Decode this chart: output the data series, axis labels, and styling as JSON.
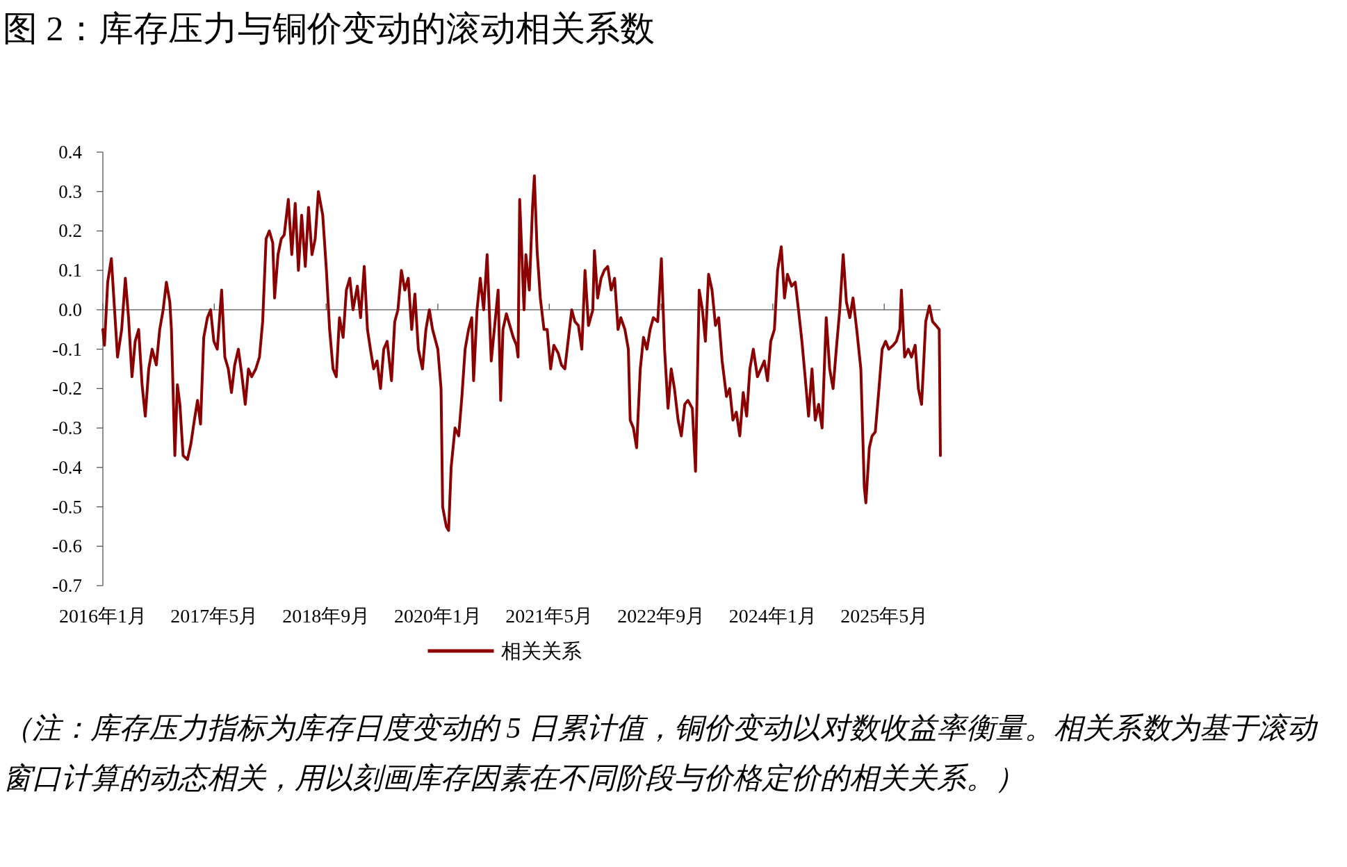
{
  "chart_data": {
    "type": "line",
    "title": "图 2：库存压力与铜价变动的滚动相关系数",
    "annotations": [
      "（注：库存压力指标为库存日度变动的 5 日累计值，铜价变动以对数收益率衡量。相关系数为基于滚动窗口计算的动态相关，用以刻画库存因素在不同阶段与价格定价的相关关系。）"
    ],
    "xlim": [
      "2016-01-01",
      "2026-01-01"
    ],
    "xticks": [
      {
        "value": "2016-01",
        "label": "2016年1月"
      },
      {
        "value": "2017-05",
        "label": "2017年5月"
      },
      {
        "value": "2018-09",
        "label": "2018年9月"
      },
      {
        "value": "2020-01",
        "label": "2020年1月"
      },
      {
        "value": "2021-05",
        "label": "2021年5月"
      },
      {
        "value": "2022-09",
        "label": "2022年9月"
      },
      {
        "value": "2024-01",
        "label": "2024年1月"
      },
      {
        "value": "2025-05",
        "label": "2025年5月"
      }
    ],
    "ylim": [
      -0.7,
      0.4
    ],
    "yticks": [
      -0.7,
      -0.6,
      -0.5,
      -0.4,
      -0.3,
      -0.2,
      -0.1,
      {
        "value": 0,
        "label": "0.0"
      },
      0.1,
      0.2,
      0.3,
      0.4
    ],
    "legend": "bottom",
    "marker": "none",
    "line_style": "solid",
    "series": [
      {
        "name": "相关关系",
        "color": "#8b0000",
        "x": [
          "2016-01-01",
          "2016-01-08",
          "2016-01-22",
          "2016-02-07",
          "2016-02-21",
          "2016-03-05",
          "2016-03-23",
          "2016-04-08",
          "2016-04-22",
          "2016-05-07",
          "2016-05-21",
          "2016-06-05",
          "2016-06-20",
          "2016-07-04",
          "2016-07-19",
          "2016-08-03",
          "2016-08-21",
          "2016-09-05",
          "2016-09-20",
          "2016-10-04",
          "2016-10-19",
          "2016-10-26",
          "2016-11-10",
          "2016-11-21",
          "2016-12-02",
          "2016-12-16",
          "2017-01-04",
          "2017-01-19",
          "2017-02-03",
          "2017-02-17",
          "2017-03-02",
          "2017-03-16",
          "2017-04-01",
          "2017-04-15",
          "2017-04-29",
          "2017-05-14",
          "2017-06-02",
          "2017-06-16",
          "2017-07-01",
          "2017-07-15",
          "2017-07-29",
          "2017-08-14",
          "2017-08-28",
          "2017-09-13",
          "2017-09-27",
          "2017-10-11",
          "2017-10-29",
          "2017-11-14",
          "2017-11-28",
          "2017-12-13",
          "2017-12-27",
          "2018-01-11",
          "2018-01-19",
          "2018-02-03",
          "2018-02-17",
          "2018-03-02",
          "2018-03-20",
          "2018-04-04",
          "2018-04-19",
          "2018-05-03",
          "2018-05-17",
          "2018-06-02",
          "2018-06-16",
          "2018-07-01",
          "2018-07-15",
          "2018-07-29",
          "2018-08-17",
          "2018-09-02",
          "2018-09-16",
          "2018-10-01",
          "2018-10-15",
          "2018-10-29",
          "2018-11-14",
          "2018-11-28",
          "2018-12-13",
          "2018-12-27",
          "2019-01-15",
          "2019-01-29",
          "2019-02-14",
          "2019-02-28",
          "2019-03-13",
          "2019-03-27",
          "2019-04-11",
          "2019-04-26",
          "2019-05-10",
          "2019-05-25",
          "2019-06-13",
          "2019-06-27",
          "2019-07-11",
          "2019-07-26",
          "2019-08-10",
          "2019-08-25",
          "2019-09-09",
          "2019-09-23",
          "2019-10-08",
          "2019-10-26",
          "2019-11-10",
          "2019-11-25",
          "2019-12-09",
          "2020-01-01",
          "2020-01-15",
          "2020-01-22",
          "2020-02-07",
          "2020-02-17",
          "2020-02-28",
          "2020-03-16",
          "2020-04-01",
          "2020-04-15",
          "2020-04-29",
          "2020-05-14",
          "2020-05-28",
          "2020-06-05",
          "2020-06-20",
          "2020-07-04",
          "2020-07-19",
          "2020-08-03",
          "2020-08-21",
          "2020-09-05",
          "2020-09-20",
          "2020-10-01",
          "2020-10-11",
          "2020-10-26",
          "2020-11-10",
          "2020-11-25",
          "2020-12-09",
          "2020-12-16",
          "2020-12-23",
          "2021-01-11",
          "2021-01-19",
          "2021-02-03",
          "2021-02-17",
          "2021-02-25",
          "2021-03-09",
          "2021-03-23",
          "2021-04-08",
          "2021-04-22",
          "2021-05-07",
          "2021-05-21",
          "2021-06-09",
          "2021-06-23",
          "2021-07-08",
          "2021-07-22",
          "2021-08-07",
          "2021-08-21",
          "2021-09-05",
          "2021-09-20",
          "2021-10-04",
          "2021-10-19",
          "2021-11-07",
          "2021-11-14",
          "2021-11-28",
          "2021-12-13",
          "2021-12-27",
          "2022-01-11",
          "2022-01-26",
          "2022-02-10",
          "2022-02-25",
          "2022-03-09",
          "2022-03-27",
          "2022-04-11",
          "2022-04-19",
          "2022-05-03",
          "2022-05-17",
          "2022-06-02",
          "2022-06-16",
          "2022-07-01",
          "2022-07-15",
          "2022-07-29",
          "2022-08-17",
          "2022-09-02",
          "2022-09-16",
          "2022-10-01",
          "2022-10-15",
          "2022-10-29",
          "2022-11-14",
          "2022-11-28",
          "2022-12-13",
          "2022-12-27",
          "2023-01-15",
          "2023-01-29",
          "2023-02-14",
          "2023-02-28",
          "2023-03-13",
          "2023-03-27",
          "2023-04-11",
          "2023-04-26",
          "2023-05-10",
          "2023-05-25",
          "2023-06-13",
          "2023-06-27",
          "2023-07-11",
          "2023-07-26",
          "2023-08-10",
          "2023-08-25",
          "2023-09-09",
          "2023-09-23",
          "2023-10-08",
          "2023-10-26",
          "2023-11-10",
          "2023-11-25",
          "2023-12-09",
          "2023-12-23",
          "2024-01-08",
          "2024-01-22",
          "2024-02-07",
          "2024-02-21",
          "2024-03-05",
          "2024-03-23",
          "2024-04-08",
          "2024-04-22",
          "2024-05-07",
          "2024-05-21",
          "2024-06-05",
          "2024-06-20",
          "2024-07-04",
          "2024-07-19",
          "2024-08-03",
          "2024-08-21",
          "2024-09-05",
          "2024-09-20",
          "2024-10-04",
          "2024-10-19",
          "2024-11-03",
          "2024-11-17",
          "2024-12-02",
          "2024-12-16",
          "2025-01-01",
          "2025-01-19",
          "2025-02-03",
          "2025-02-10",
          "2025-02-25",
          "2025-03-09",
          "2025-03-23",
          "2025-04-08",
          "2025-04-22",
          "2025-05-07",
          "2025-05-21",
          "2025-06-09",
          "2025-06-23",
          "2025-07-08",
          "2025-07-15",
          "2025-07-29",
          "2025-08-14",
          "2025-08-28",
          "2025-09-13",
          "2025-09-27",
          "2025-10-11",
          "2025-10-29",
          "2025-11-14",
          "2025-11-28",
          "2025-12-13",
          "2025-12-27",
          "2026-01-01"
        ],
        "values": [
          -0.05,
          -0.09,
          0.07,
          0.13,
          0.0,
          -0.12,
          -0.05,
          0.08,
          -0.02,
          -0.17,
          -0.08,
          -0.05,
          -0.19,
          -0.27,
          -0.15,
          -0.1,
          -0.14,
          -0.05,
          0.0,
          0.07,
          0.02,
          -0.05,
          -0.37,
          -0.19,
          -0.24,
          -0.37,
          -0.38,
          -0.34,
          -0.28,
          -0.23,
          -0.29,
          -0.07,
          -0.02,
          0.0,
          -0.08,
          -0.1,
          0.05,
          -0.12,
          -0.15,
          -0.21,
          -0.14,
          -0.1,
          -0.16,
          -0.24,
          -0.15,
          -0.17,
          -0.15,
          -0.12,
          -0.03,
          0.18,
          0.2,
          0.17,
          0.03,
          0.14,
          0.18,
          0.19,
          0.28,
          0.14,
          0.27,
          0.1,
          0.24,
          0.11,
          0.26,
          0.14,
          0.18,
          0.3,
          0.24,
          0.1,
          -0.05,
          -0.15,
          -0.17,
          -0.02,
          -0.07,
          0.05,
          0.08,
          0.0,
          0.06,
          -0.02,
          0.11,
          -0.05,
          -0.1,
          -0.15,
          -0.13,
          -0.2,
          -0.1,
          -0.08,
          -0.18,
          -0.03,
          0.0,
          0.1,
          0.05,
          0.08,
          -0.05,
          0.04,
          -0.1,
          -0.15,
          -0.05,
          0.0,
          -0.05,
          -0.1,
          -0.2,
          -0.5,
          -0.55,
          -0.56,
          -0.4,
          -0.3,
          -0.32,
          -0.22,
          -0.1,
          -0.05,
          -0.02,
          -0.18,
          0.0,
          0.08,
          0.0,
          0.14,
          -0.13,
          -0.04,
          0.05,
          -0.23,
          -0.05,
          -0.01,
          -0.04,
          -0.07,
          -0.09,
          -0.12,
          0.28,
          0.0,
          0.14,
          0.05,
          0.26,
          0.34,
          0.15,
          0.03,
          -0.05,
          -0.05,
          -0.15,
          -0.09,
          -0.11,
          -0.14,
          -0.15,
          -0.08,
          0.0,
          -0.03,
          -0.04,
          -0.1,
          0.1,
          -0.04,
          0.0,
          0.15,
          0.03,
          0.08,
          0.1,
          0.11,
          0.05,
          0.08,
          -0.05,
          -0.02,
          -0.05,
          -0.1,
          -0.28,
          -0.3,
          -0.35,
          -0.15,
          -0.07,
          -0.1,
          -0.05,
          -0.02,
          -0.03,
          0.13,
          -0.1,
          -0.25,
          -0.15,
          -0.2,
          -0.28,
          -0.32,
          -0.24,
          -0.23,
          -0.25,
          -0.41,
          0.05,
          0.0,
          -0.08,
          0.09,
          0.05,
          -0.04,
          -0.02,
          -0.13,
          -0.22,
          -0.2,
          -0.28,
          -0.26,
          -0.32,
          -0.21,
          -0.27,
          -0.15,
          -0.1,
          -0.17,
          -0.15,
          -0.13,
          -0.18,
          -0.08,
          -0.05,
          0.1,
          0.16,
          0.03,
          0.09,
          0.06,
          0.07,
          0.0,
          -0.08,
          -0.17,
          -0.27,
          -0.15,
          -0.28,
          -0.24,
          -0.3,
          -0.02,
          -0.15,
          -0.2,
          -0.1,
          0.0,
          0.14,
          0.02,
          -0.02,
          0.03,
          -0.05,
          -0.15,
          -0.45,
          -0.49,
          -0.35,
          -0.32,
          -0.31,
          -0.2,
          -0.1,
          -0.08,
          -0.1,
          -0.09,
          -0.08,
          -0.05,
          0.05,
          -0.12,
          -0.1,
          -0.12,
          -0.09,
          -0.2,
          -0.24,
          -0.03,
          0.01,
          -0.03,
          -0.04,
          -0.05,
          -0.37
        ]
      }
    ]
  }
}
